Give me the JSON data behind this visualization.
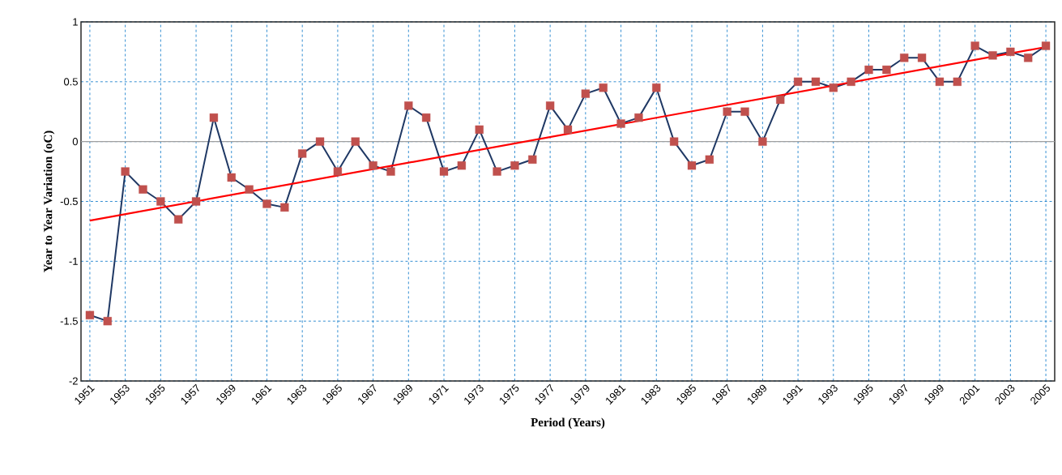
{
  "chart_data": {
    "type": "line",
    "xlabel": "Period (Years)",
    "ylabel": "Year to Year Variation (oC)",
    "xlim": [
      1950.5,
      2005.5
    ],
    "ylim": [
      -2,
      1
    ],
    "xticks": [
      1951,
      1953,
      1955,
      1957,
      1959,
      1961,
      1963,
      1965,
      1967,
      1969,
      1971,
      1973,
      1975,
      1977,
      1979,
      1981,
      1983,
      1985,
      1987,
      1989,
      1991,
      1993,
      1995,
      1997,
      1999,
      2001,
      2003,
      2005
    ],
    "yticks": [
      -2,
      -1.5,
      -1,
      -0.5,
      0,
      0.5,
      1
    ],
    "grid": true,
    "ref_lines": [
      {
        "axis": "y",
        "value": 0,
        "color": "#a0a0a0"
      }
    ],
    "series": [
      {
        "color": "#1f3864",
        "marker": "square",
        "colors": [
          "#c0504d",
          "#c0504d",
          "#c0504d",
          "#c0504d",
          "#c0504d",
          "#c0504d",
          "#c0504d",
          "#c0504d",
          "#c0504d",
          "#c0504d",
          "#c0504d",
          "#c0504d",
          "#c0504d",
          "#c0504d",
          "#c0504d",
          "#c0504d",
          "#c0504d",
          "#c0504d",
          "#c0504d",
          "#c0504d",
          "#c0504d",
          "#c0504d",
          "#c0504d",
          "#c0504d",
          "#c0504d",
          "#c0504d",
          "#c0504d",
          "#c0504d",
          "#c0504d",
          "#c0504d",
          "#c0504d",
          "#c0504d",
          "#c0504d",
          "#c0504d",
          "#c0504d",
          "#c0504d",
          "#c0504d",
          "#c0504d",
          "#c0504d",
          "#c0504d",
          "#c0504d",
          "#c0504d",
          "#c0504d",
          "#c0504d",
          "#c0504d",
          "#c0504d",
          "#c0504d",
          "#c0504d",
          "#c0504d",
          "#c0504d",
          "#c0504d",
          "#c0504d",
          "#c0504d",
          "#c0504d",
          "#c0504d"
        ],
        "x": [
          1951,
          1952,
          1953,
          1954,
          1955,
          1956,
          1957,
          1958,
          1959,
          1960,
          1961,
          1962,
          1963,
          1964,
          1965,
          1966,
          1967,
          1968,
          1969,
          1970,
          1971,
          1972,
          1973,
          1974,
          1975,
          1976,
          1977,
          1978,
          1979,
          1980,
          1981,
          1982,
          1983,
          1984,
          1985,
          1986,
          1987,
          1988,
          1989,
          1990,
          1991,
          1992,
          1993,
          1994,
          1995,
          1996,
          1997,
          1998,
          1999,
          2000,
          2001,
          2002,
          2003,
          2004,
          2005
        ],
        "values": [
          -1.45,
          -1.5,
          -0.25,
          -0.4,
          -0.5,
          -0.65,
          -0.5,
          0.2,
          -0.3,
          -0.4,
          -0.52,
          -0.55,
          -0.1,
          0,
          -0.25,
          0,
          -0.2,
          -0.25,
          0.3,
          0.2,
          -0.25,
          -0.2,
          0.1,
          -0.25,
          -0.2,
          -0.15,
          0.3,
          0.1,
          0.4,
          0.45,
          0.15,
          0.2,
          0.45,
          0,
          -0.2,
          -0.15,
          0.25,
          0.25,
          0,
          0.35,
          0.5,
          0.5,
          0.45,
          0.5,
          0.6,
          0.6,
          0.7,
          0.7,
          0.5,
          0.5,
          0.8,
          0.72,
          0.75,
          0.7,
          0.8
        ]
      },
      {
        "color": "#ff0000",
        "marker": "none",
        "x": [
          1951,
          2005
        ],
        "values": [
          -0.66,
          0.79
        ]
      }
    ]
  }
}
